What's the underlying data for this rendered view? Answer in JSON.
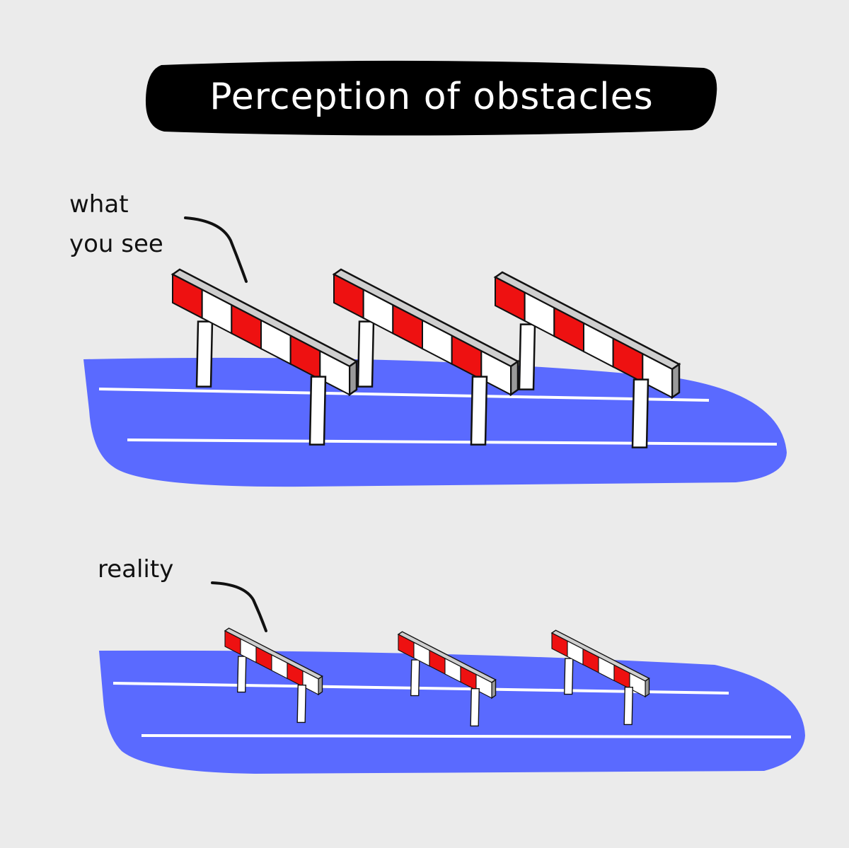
{
  "title": "Perception of obstacles",
  "panels": {
    "top": {
      "label_line1": "what",
      "label_line2": "you see",
      "hurdle_count": 3
    },
    "bottom": {
      "label": "reality",
      "hurdle_count": 3
    }
  },
  "colors": {
    "background": "#ebebeb",
    "title_banner": "#000000",
    "title_text": "#ffffff",
    "track": "#5a6aff",
    "lane_line": "#ffffff",
    "hurdle_red": "#ee1111",
    "hurdle_white": "#ffffff",
    "hurdle_post": "#ffffff",
    "outline": "#111111"
  }
}
